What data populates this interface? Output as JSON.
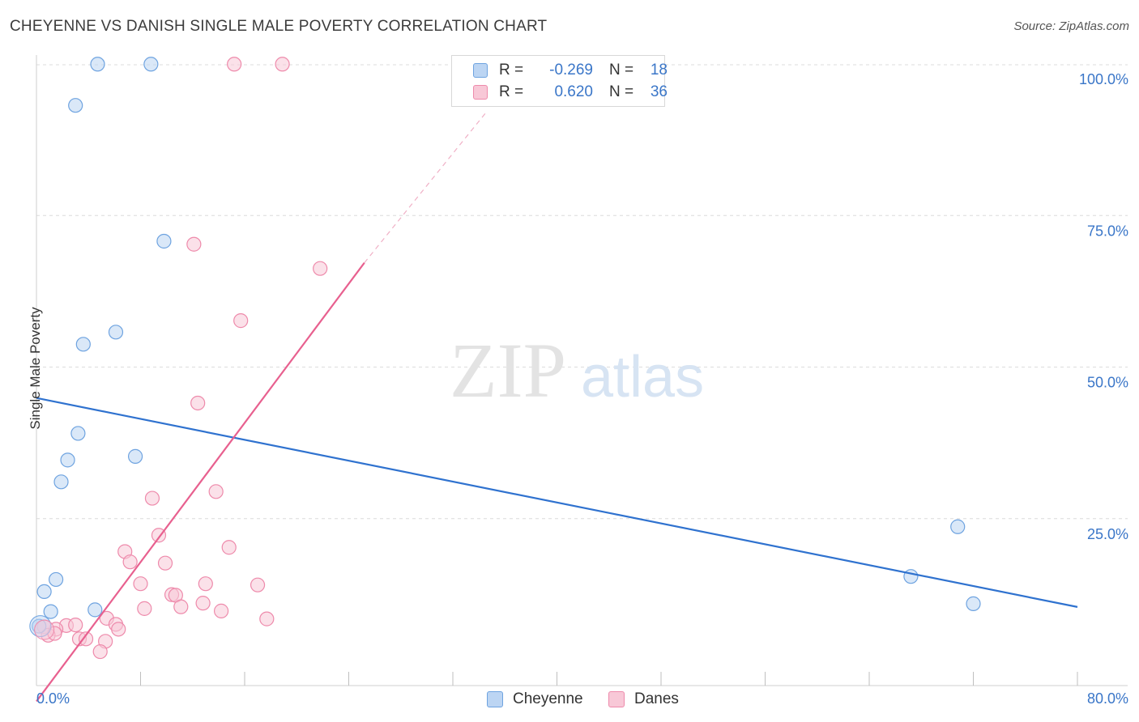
{
  "header": {
    "title": "CHEYENNE VS DANISH SINGLE MALE POVERTY CORRELATION CHART",
    "source": "Source: ZipAtlas.com"
  },
  "colors": {
    "cheyenne": "#6ea3e0",
    "cheyenne_fill": "#bcd5f3",
    "danes": "#ee8aab",
    "danes_fill": "#f8c8d7",
    "cheyenne_line": "#2f72cf",
    "danes_line": "#e8608f",
    "axis_text": "#3a76c8",
    "grid": "#dcdcdc"
  },
  "legend_top": {
    "rows": [
      {
        "r_label": "R =",
        "r_value": "-0.269",
        "n_label": "N =",
        "n_value": "18"
      },
      {
        "r_label": "R =",
        "r_value": "0.620",
        "n_label": "N =",
        "n_value": "36"
      }
    ]
  },
  "legend_bottom": {
    "cheyenne": "Cheyenne",
    "danes": "Danes"
  },
  "watermark": {
    "zip": "ZIP",
    "atlas": "atlas"
  },
  "chart_data": {
    "type": "scatter",
    "title": "CHEYENNE VS DANISH SINGLE MALE POVERTY CORRELATION CHART",
    "xlabel": "",
    "ylabel": "Single Male Poverty",
    "xlim": [
      0,
      80
    ],
    "ylim": [
      0,
      100
    ],
    "x_tick_labels": [
      "0.0%",
      "80.0%"
    ],
    "y_tick_labels": [
      {
        "value": 100,
        "label": "100.0%"
      },
      {
        "value": 75,
        "label": "75.0%"
      },
      {
        "value": 50,
        "label": "50.0%"
      },
      {
        "value": 25,
        "label": "25.0%"
      }
    ],
    "series": [
      {
        "name": "Cheyenne",
        "r": -0.269,
        "n": 18,
        "trend": {
          "x0": 0,
          "y0": 45.3,
          "x1": 80,
          "y1": 12.3
        },
        "points": [
          [
            4.7,
            102.5
          ],
          [
            8.8,
            102.5
          ],
          [
            3.0,
            95.7
          ],
          [
            9.8,
            73.3
          ],
          [
            3.6,
            56.3
          ],
          [
            6.1,
            58.3
          ],
          [
            3.2,
            41.6
          ],
          [
            2.4,
            37.2
          ],
          [
            7.6,
            37.8
          ],
          [
            1.9,
            33.6
          ],
          [
            1.5,
            17.5
          ],
          [
            0.6,
            15.5
          ],
          [
            1.1,
            12.2
          ],
          [
            4.5,
            12.5
          ],
          [
            0.2,
            9.8
          ],
          [
            67.2,
            18.0
          ],
          [
            70.8,
            26.2
          ],
          [
            72.0,
            13.5
          ]
        ]
      },
      {
        "name": "Danes",
        "r": 0.62,
        "n": 36,
        "trend": {
          "x0": 0,
          "y0": -3.4,
          "x1": 25.2,
          "y1": 69.2
        },
        "trend_dashed": {
          "x0": 25.2,
          "y0": 69.2,
          "x1": 34.6,
          "y1": 96.0
        },
        "points": [
          [
            15.2,
            102.5
          ],
          [
            18.9,
            102.5
          ],
          [
            12.1,
            72.8
          ],
          [
            21.8,
            68.8
          ],
          [
            15.7,
            60.2
          ],
          [
            12.4,
            46.6
          ],
          [
            8.9,
            30.9
          ],
          [
            13.8,
            32.0
          ],
          [
            9.4,
            24.8
          ],
          [
            6.8,
            22.1
          ],
          [
            14.8,
            22.8
          ],
          [
            7.2,
            20.4
          ],
          [
            9.9,
            20.2
          ],
          [
            8.0,
            16.8
          ],
          [
            13.0,
            16.8
          ],
          [
            17.0,
            16.6
          ],
          [
            10.4,
            15.0
          ],
          [
            10.7,
            14.9
          ],
          [
            11.1,
            13.0
          ],
          [
            12.8,
            13.6
          ],
          [
            8.3,
            12.7
          ],
          [
            14.2,
            12.3
          ],
          [
            17.7,
            11.0
          ],
          [
            5.4,
            11.1
          ],
          [
            6.1,
            10.1
          ],
          [
            6.3,
            9.3
          ],
          [
            2.3,
            9.9
          ],
          [
            3.0,
            10.0
          ],
          [
            1.5,
            9.3
          ],
          [
            0.6,
            9.7
          ],
          [
            0.9,
            8.3
          ],
          [
            1.4,
            8.6
          ],
          [
            3.3,
            7.7
          ],
          [
            3.8,
            7.7
          ],
          [
            5.3,
            7.3
          ],
          [
            4.9,
            5.6
          ]
        ]
      }
    ]
  }
}
